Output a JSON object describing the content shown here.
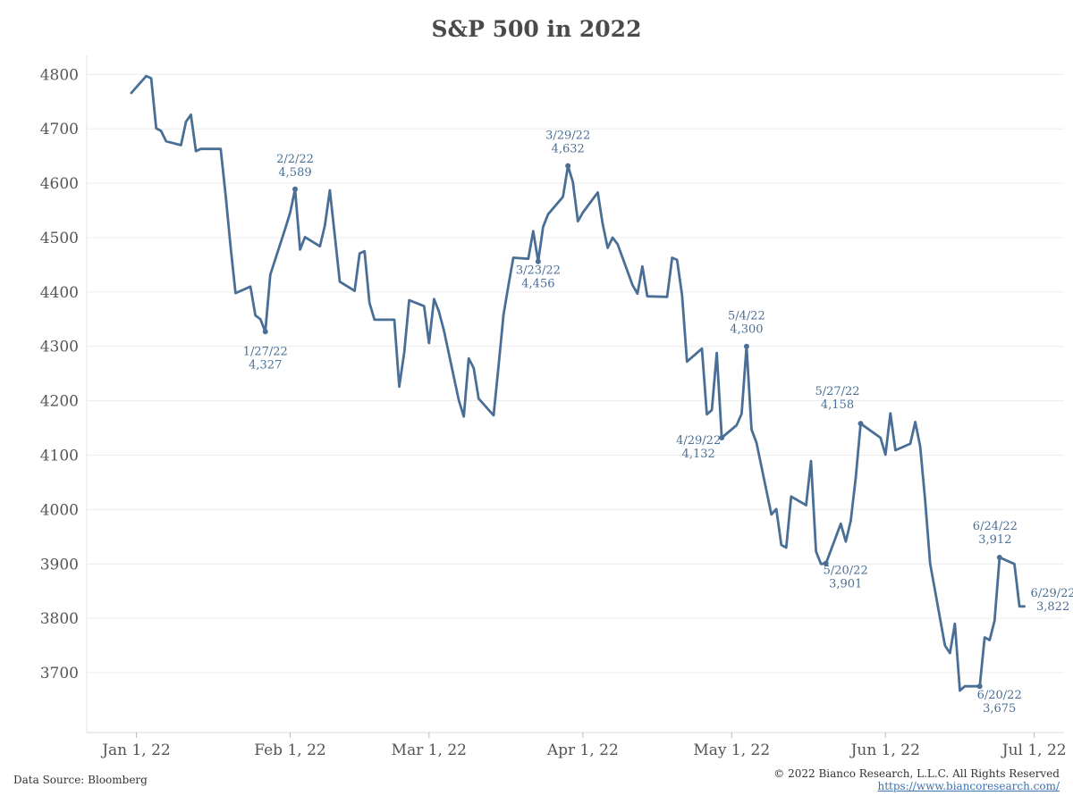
{
  "title": "S&P 500 in 2022",
  "source": "Data Source: Bloomberg",
  "copyright": "© 2022 Bianco Research, L.L.C. All Rights Reserved",
  "website": "https://www.biancoresearch.com/",
  "colors": {
    "line": "#4a6f96",
    "grid": "#ececec"
  },
  "chart_data": {
    "type": "line",
    "title": "S&P 500 in 2022",
    "xlabel": "",
    "ylabel": "",
    "ylim": [
      3590,
      4835
    ],
    "yticks": [
      3700,
      3800,
      3900,
      4000,
      4100,
      4200,
      4300,
      4400,
      4500,
      4600,
      4700,
      4800
    ],
    "xlim": [
      "2021-12-22",
      "2022-07-07"
    ],
    "xticks": [
      {
        "date": "2022-01-01",
        "label": "Jan 1, 22"
      },
      {
        "date": "2022-02-01",
        "label": "Feb 1, 22"
      },
      {
        "date": "2022-03-01",
        "label": "Mar 1, 22"
      },
      {
        "date": "2022-04-01",
        "label": "Apr 1, 22"
      },
      {
        "date": "2022-05-01",
        "label": "May 1, 22"
      },
      {
        "date": "2022-06-01",
        "label": "Jun 1, 22"
      },
      {
        "date": "2022-07-01",
        "label": "Jul 1, 22"
      }
    ],
    "grid": true,
    "series": [
      {
        "x": [
          "2021-12-31",
          "2022-01-03",
          "2022-01-04",
          "2022-01-05",
          "2022-01-06",
          "2022-01-07",
          "2022-01-10",
          "2022-01-11",
          "2022-01-12",
          "2022-01-13",
          "2022-01-14",
          "2022-01-18",
          "2022-01-19",
          "2022-01-20",
          "2022-01-21",
          "2022-01-24",
          "2022-01-25",
          "2022-01-26",
          "2022-01-27",
          "2022-01-28",
          "2022-01-31",
          "2022-02-01",
          "2022-02-02",
          "2022-02-03",
          "2022-02-04",
          "2022-02-07",
          "2022-02-08",
          "2022-02-09",
          "2022-02-10",
          "2022-02-11",
          "2022-02-14",
          "2022-02-15",
          "2022-02-16",
          "2022-02-17",
          "2022-02-18",
          "2022-02-22",
          "2022-02-23",
          "2022-02-24",
          "2022-02-25",
          "2022-02-28",
          "2022-03-01",
          "2022-03-02",
          "2022-03-03",
          "2022-03-04",
          "2022-03-07",
          "2022-03-08",
          "2022-03-09",
          "2022-03-10",
          "2022-03-11",
          "2022-03-14",
          "2022-03-15",
          "2022-03-16",
          "2022-03-17",
          "2022-03-18",
          "2022-03-21",
          "2022-03-22",
          "2022-03-23",
          "2022-03-24",
          "2022-03-25",
          "2022-03-28",
          "2022-03-29",
          "2022-03-30",
          "2022-03-31",
          "2022-04-01",
          "2022-04-04",
          "2022-04-05",
          "2022-04-06",
          "2022-04-07",
          "2022-04-08",
          "2022-04-11",
          "2022-04-12",
          "2022-04-13",
          "2022-04-14",
          "2022-04-18",
          "2022-04-19",
          "2022-04-20",
          "2022-04-21",
          "2022-04-22",
          "2022-04-25",
          "2022-04-26",
          "2022-04-27",
          "2022-04-28",
          "2022-04-29",
          "2022-05-02",
          "2022-05-03",
          "2022-05-04",
          "2022-05-05",
          "2022-05-06",
          "2022-05-09",
          "2022-05-10",
          "2022-05-11",
          "2022-05-12",
          "2022-05-13",
          "2022-05-16",
          "2022-05-17",
          "2022-05-18",
          "2022-05-19",
          "2022-05-20",
          "2022-05-23",
          "2022-05-24",
          "2022-05-25",
          "2022-05-26",
          "2022-05-27",
          "2022-05-31",
          "2022-06-01",
          "2022-06-02",
          "2022-06-03",
          "2022-06-06",
          "2022-06-07",
          "2022-06-08",
          "2022-06-09",
          "2022-06-10",
          "2022-06-13",
          "2022-06-14",
          "2022-06-15",
          "2022-06-16",
          "2022-06-17",
          "2022-06-20",
          "2022-06-21",
          "2022-06-22",
          "2022-06-23",
          "2022-06-24",
          "2022-06-27",
          "2022-06-28",
          "2022-06-29"
        ],
        "y": [
          4766,
          4797,
          4793,
          4701,
          4696,
          4677,
          4670,
          4713,
          4726,
          4659,
          4663,
          4663,
          4577,
          4483,
          4398,
          4410,
          4357,
          4350,
          4327,
          4432,
          4516,
          4546,
          4589,
          4478,
          4501,
          4484,
          4522,
          4587,
          4504,
          4419,
          4402,
          4471,
          4475,
          4380,
          4349,
          4349,
          4226,
          4289,
          4385,
          4374,
          4306,
          4387,
          4364,
          4329,
          4201,
          4171,
          4278,
          4260,
          4204,
          4173,
          4263,
          4358,
          4412,
          4463,
          4461,
          4512,
          4456,
          4520,
          4543,
          4575,
          4632,
          4602,
          4530,
          4546,
          4583,
          4525,
          4481,
          4500,
          4488,
          4413,
          4397,
          4447,
          4392,
          4391,
          4463,
          4459,
          4394,
          4272,
          4296,
          4175,
          4183,
          4288,
          4132,
          4155,
          4176,
          4300,
          4147,
          4123,
          3991,
          4001,
          3935,
          3930,
          4024,
          4008,
          4089,
          3923,
          3900,
          3901,
          3974,
          3941,
          3979,
          4058,
          4158,
          4132,
          4101,
          4177,
          4109,
          4121,
          4161,
          4116,
          4018,
          3901,
          3750,
          3736,
          3790,
          3667,
          3675,
          3675,
          3765,
          3760,
          3796,
          3912,
          3900,
          3822,
          3822
        ]
      }
    ],
    "annotations": [
      {
        "date": "2022-01-27",
        "value": 4327,
        "date_label": "1/27/22",
        "value_label": "4,327"
      },
      {
        "date": "2022-02-02",
        "value": 4589,
        "date_label": "2/2/22",
        "value_label": "4,589"
      },
      {
        "date": "2022-03-23",
        "value": 4456,
        "date_label": "3/23/22",
        "value_label": "4,456"
      },
      {
        "date": "2022-03-29",
        "value": 4632,
        "date_label": "3/29/22",
        "value_label": "4,632"
      },
      {
        "date": "2022-04-29",
        "value": 4132,
        "date_label": "4/29/22",
        "value_label": "4,132"
      },
      {
        "date": "2022-05-04",
        "value": 4300,
        "date_label": "5/4/22",
        "value_label": "4,300"
      },
      {
        "date": "2022-05-20",
        "value": 3901,
        "date_label": "5/20/22",
        "value_label": "3,901"
      },
      {
        "date": "2022-05-27",
        "value": 4158,
        "date_label": "5/27/22",
        "value_label": "4,158"
      },
      {
        "date": "2022-06-20",
        "value": 3675,
        "date_label": "6/20/22",
        "value_label": "3,675"
      },
      {
        "date": "2022-06-24",
        "value": 3912,
        "date_label": "6/24/22",
        "value_label": "3,912"
      },
      {
        "date": "2022-06-29",
        "value": 3822,
        "date_label": "6/29/22",
        "value_label": "3,822"
      }
    ]
  }
}
